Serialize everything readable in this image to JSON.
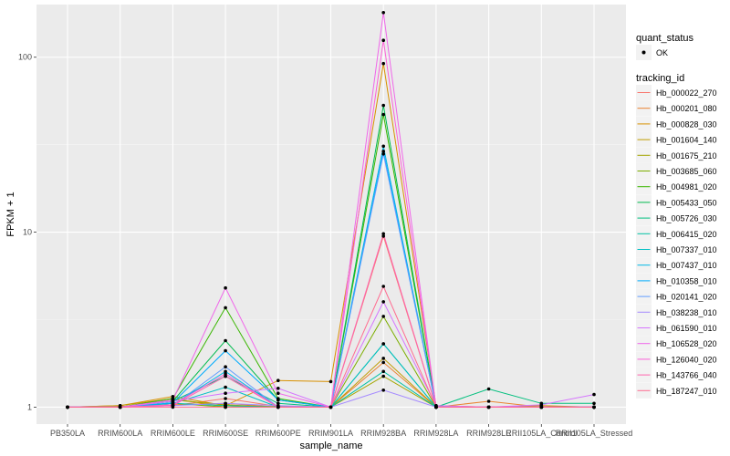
{
  "chart_data": {
    "type": "line",
    "xlabel": "sample_name",
    "ylabel": "FPKM + 1",
    "y_scale": "log10",
    "ylim": [
      0.8,
      200
    ],
    "yticks": [
      {
        "value": 1,
        "label": "1"
      },
      {
        "value": 10,
        "label": "10"
      },
      {
        "value": 100,
        "label": "100"
      }
    ],
    "categories": [
      "PB350LA",
      "RRIM600LA",
      "RRIM600LE",
      "RRIM600SE",
      "RRIM600PE",
      "RRIM901LA",
      "RRIM928BA",
      "RRIM928LA",
      "RRIM928LE",
      "RRII105LA_Control",
      "RRII105LA_Stressed"
    ],
    "legend_shape": {
      "title": "quant_status",
      "entries": [
        "OK"
      ]
    },
    "legend_color": {
      "title": "tracking_id"
    },
    "series": [
      {
        "name": "Hb_000022_270",
        "color": "#F8766D",
        "values": [
          1,
          1.01,
          1.02,
          1.12,
          1.01,
          1.0,
          9.5,
          1.0,
          1.0,
          1.0,
          1.0
        ]
      },
      {
        "name": "Hb_000201_080",
        "color": "#EA8331",
        "values": [
          1,
          1.0,
          1.03,
          1.05,
          1.0,
          1.0,
          1.8,
          1.0,
          1.08,
          1.0,
          1.0
        ]
      },
      {
        "name": "Hb_000828_030",
        "color": "#D89000",
        "values": [
          1,
          1.02,
          1.15,
          1.02,
          1.42,
          1.4,
          92,
          1.02,
          1.0,
          1.02,
          1.0
        ]
      },
      {
        "name": "Hb_001604_140",
        "color": "#C09B00",
        "values": [
          1,
          1.02,
          1.12,
          1.0,
          1.01,
          1.0,
          1.9,
          1.0,
          1.0,
          1.0,
          1.0
        ]
      },
      {
        "name": "Hb_001675_210",
        "color": "#A3A500",
        "values": [
          1,
          1.0,
          1.1,
          1.03,
          1.0,
          1.0,
          1.5,
          1.0,
          1.0,
          1.0,
          1.0
        ]
      },
      {
        "name": "Hb_003685_060",
        "color": "#7CAE00",
        "values": [
          1,
          1.0,
          1.05,
          1.0,
          1.0,
          1.0,
          3.3,
          1.0,
          1.0,
          1.0,
          1.0
        ]
      },
      {
        "name": "Hb_004981_020",
        "color": "#39B600",
        "values": [
          1,
          1.0,
          1.12,
          3.7,
          1.12,
          1.0,
          47,
          1.0,
          1.0,
          1.0,
          1.0
        ]
      },
      {
        "name": "Hb_005433_050",
        "color": "#00BB4E",
        "values": [
          1,
          1.0,
          1.08,
          2.4,
          1.1,
          1.0,
          53,
          1.0,
          1.0,
          1.0,
          1.0
        ]
      },
      {
        "name": "Hb_005726_030",
        "color": "#00BF7D",
        "values": [
          1,
          1.0,
          1.08,
          1.5,
          1.05,
          1.0,
          2.3,
          1.0,
          1.27,
          1.05,
          1.05
        ]
      },
      {
        "name": "Hb_006415_020",
        "color": "#00C1A3",
        "values": [
          1,
          1.0,
          1.05,
          1.02,
          1.0,
          1.0,
          1.6,
          1.0,
          1.0,
          1.0,
          1.0
        ]
      },
      {
        "name": "Hb_007337_010",
        "color": "#00BFC4",
        "values": [
          1,
          1.0,
          1.05,
          1.3,
          1.0,
          1.0,
          2.3,
          1.0,
          1.0,
          1.0,
          1.0
        ]
      },
      {
        "name": "Hb_007437_010",
        "color": "#00B8E5",
        "values": [
          1,
          1.0,
          1.03,
          1.6,
          1.0,
          1.0,
          31,
          1.0,
          1.0,
          1.0,
          1.0
        ]
      },
      {
        "name": "Hb_010358_010",
        "color": "#00ABFD",
        "values": [
          1,
          1.0,
          1.06,
          2.1,
          1.1,
          1.0,
          29,
          1.0,
          1.0,
          1.0,
          1.0
        ]
      },
      {
        "name": "Hb_020141_020",
        "color": "#619CFF",
        "values": [
          1,
          1.0,
          1.02,
          1.7,
          1.0,
          1.0,
          28,
          1.0,
          1.0,
          1.0,
          1.0
        ]
      },
      {
        "name": "Hb_038238_010",
        "color": "#A58AFF",
        "values": [
          1,
          1.0,
          1.02,
          1.05,
          1.02,
          1.0,
          1.25,
          1.0,
          1.0,
          1.0,
          1.0
        ]
      },
      {
        "name": "Hb_061590_010",
        "color": "#D575FE",
        "values": [
          1,
          1.0,
          1.08,
          1.2,
          1.28,
          1.0,
          4.0,
          1.02,
          1.0,
          1.03,
          1.18
        ]
      },
      {
        "name": "Hb_106528_020",
        "color": "#F066EA",
        "values": [
          1,
          1.0,
          1.1,
          4.8,
          1.2,
          1.0,
          180,
          1.0,
          1.0,
          1.0,
          1.0
        ]
      },
      {
        "name": "Hb_126040_020",
        "color": "#FB61D7",
        "values": [
          1,
          1.0,
          1.03,
          1.55,
          1.0,
          1.0,
          125,
          1.0,
          1.0,
          1.0,
          1.0
        ]
      },
      {
        "name": "Hb_143766_040",
        "color": "#FF65AE",
        "values": [
          1,
          1.0,
          1.02,
          1.5,
          1.0,
          1.0,
          9.8,
          1.0,
          1.0,
          1.0,
          1.0
        ]
      },
      {
        "name": "Hb_187247_010",
        "color": "#FF6C91",
        "values": [
          1,
          1.0,
          1.0,
          1.0,
          1.0,
          1.0,
          4.9,
          1.0,
          1.0,
          1.0,
          1.0
        ]
      }
    ]
  }
}
